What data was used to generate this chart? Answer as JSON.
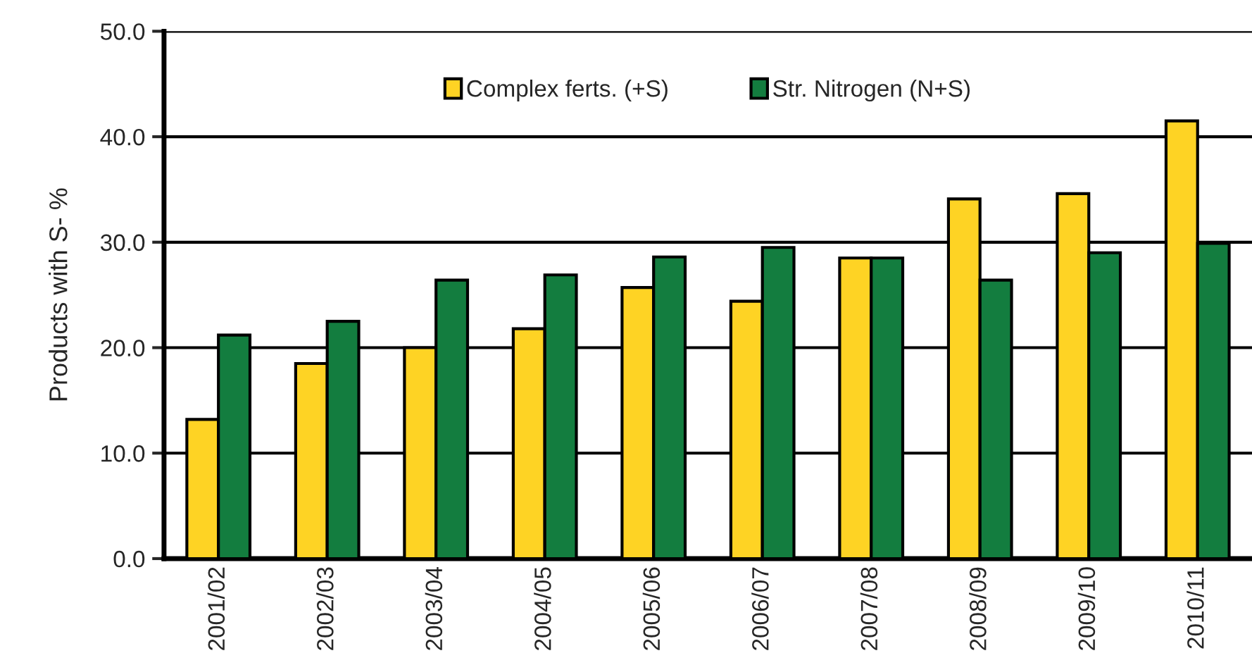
{
  "chart_data": {
    "type": "bar",
    "ylabel": "Products with S- %",
    "categories": [
      "2001/02",
      "2002/03",
      "2003/04",
      "2004/05",
      "2005/06",
      "2006/07",
      "2007/08",
      "2008/09",
      "2009/10",
      "2010/11"
    ],
    "series": [
      {
        "name": "Complex ferts. (+S)",
        "color": "#fed324",
        "values": [
          13.2,
          18.5,
          20.0,
          21.8,
          25.7,
          24.4,
          28.5,
          34.1,
          34.6,
          41.5
        ]
      },
      {
        "name": "Str. Nitrogen (N+S)",
        "color": "#137d3f",
        "values": [
          21.2,
          22.5,
          26.4,
          26.9,
          28.6,
          29.5,
          28.5,
          26.4,
          29.0,
          29.9
        ]
      }
    ],
    "ylim": [
      0,
      50
    ],
    "yticks": [
      {
        "value": 0,
        "label": "0.0"
      },
      {
        "value": 10,
        "label": "10.0"
      },
      {
        "value": 20,
        "label": "20.0"
      },
      {
        "value": 30,
        "label": "30.0"
      },
      {
        "value": 40,
        "label": "40.0"
      },
      {
        "value": 50,
        "label": "50.0"
      }
    ],
    "grid": "y",
    "legend": "top"
  }
}
